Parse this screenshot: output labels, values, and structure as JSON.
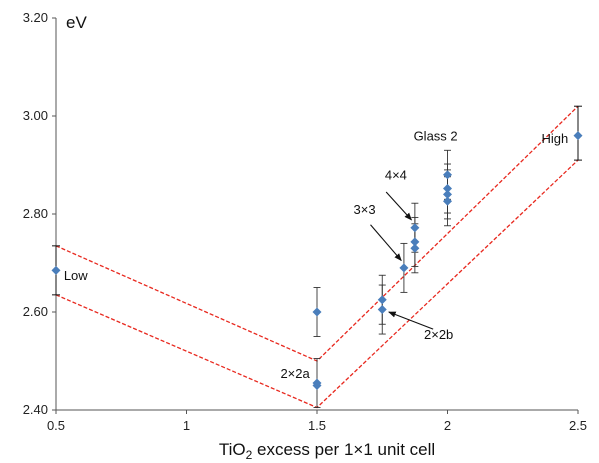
{
  "colors": {
    "marker": "#4a7ebb",
    "band": "#e8281e",
    "axis": "#555555",
    "errorbar": "#333333"
  },
  "chart_data": {
    "type": "scatter",
    "title": "",
    "xlabel": "excess per 1×1 unit cell",
    "xlabel_formula": "TiO",
    "xlabel_subscript": "2",
    "ylabel": "eV",
    "xlim": [
      0.5,
      2.5
    ],
    "ylim": [
      2.4,
      3.2
    ],
    "xticks": [
      0.5,
      1,
      1.5,
      2,
      2.5
    ],
    "xtick_labels": [
      "0.5",
      "1",
      "1.5",
      "2",
      "2.5"
    ],
    "yticks": [
      2.4,
      2.6,
      2.8,
      3.0,
      3.2
    ],
    "ytick_labels": [
      "2.40",
      "2.60",
      "2.80",
      "3.00",
      "3.20"
    ],
    "grid": false,
    "points": [
      {
        "x": 0.5,
        "y": 2.685,
        "err": 0
      },
      {
        "x": 1.5,
        "y": 2.6,
        "err": 0.05
      },
      {
        "x": 1.5,
        "y": 2.455,
        "err": 0.05
      },
      {
        "x": 1.5,
        "y": 2.45,
        "err": 0
      },
      {
        "x": 1.75,
        "y": 2.625,
        "err": 0.05
      },
      {
        "x": 1.75,
        "y": 2.605,
        "err": 0.05
      },
      {
        "x": 1.833,
        "y": 2.69,
        "err": 0.05
      },
      {
        "x": 1.875,
        "y": 2.772,
        "err": 0.05
      },
      {
        "x": 1.875,
        "y": 2.743,
        "err": 0.05
      },
      {
        "x": 1.875,
        "y": 2.73,
        "err": 0.05
      },
      {
        "x": 2.0,
        "y": 2.88,
        "err": 0.05
      },
      {
        "x": 2.0,
        "y": 2.852,
        "err": 0.05
      },
      {
        "x": 2.0,
        "y": 2.84,
        "err": 0.05
      },
      {
        "x": 2.0,
        "y": 2.826,
        "err": 0.05
      },
      {
        "x": 2.5,
        "y": 2.96,
        "err": 0
      }
    ],
    "bands": [
      {
        "name": "upper",
        "points": [
          [
            0.5,
            2.735
          ],
          [
            1.5,
            2.5
          ],
          [
            2.5,
            3.02
          ]
        ]
      },
      {
        "name": "lower",
        "points": [
          [
            0.5,
            2.635
          ],
          [
            1.5,
            2.405
          ],
          [
            2.5,
            2.91
          ]
        ]
      }
    ],
    "range_brackets": [
      {
        "x": 0.5,
        "y1": 2.635,
        "y2": 2.735
      },
      {
        "x": 2.5,
        "y1": 2.91,
        "y2": 3.02
      }
    ],
    "annotations": [
      {
        "text": "Low",
        "x": 0.53,
        "y": 2.665
      },
      {
        "text": "High",
        "x": 2.36,
        "y": 2.945
      },
      {
        "text": "Glass 2",
        "x": 1.87,
        "y": 2.95
      },
      {
        "text": "4×4",
        "x": 1.76,
        "y": 2.87
      },
      {
        "text": "3×3",
        "x": 1.64,
        "y": 2.8
      },
      {
        "text": "2×2a",
        "x": 1.36,
        "y": 2.465
      },
      {
        "text": "2×2b",
        "x": 1.91,
        "y": 2.545
      }
    ],
    "arrows": [
      {
        "from": [
          1.765,
          2.845
        ],
        "to": [
          1.862,
          2.788
        ]
      },
      {
        "from": [
          1.705,
          2.778
        ],
        "to": [
          1.823,
          2.705
        ]
      },
      {
        "from": [
          1.945,
          2.565
        ],
        "to": [
          1.775,
          2.6
        ]
      }
    ]
  }
}
